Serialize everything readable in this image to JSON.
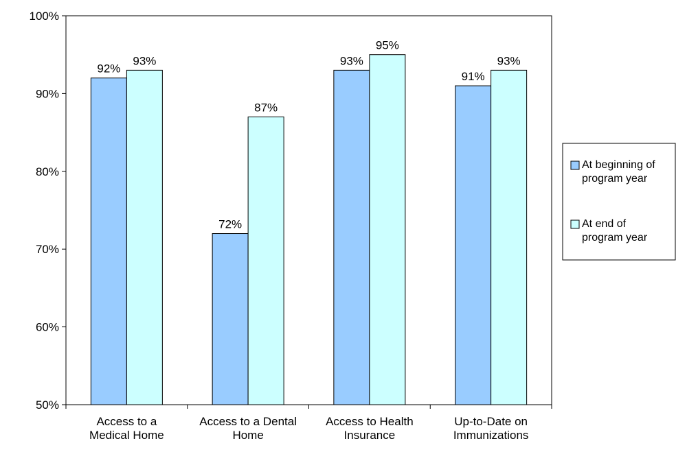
{
  "chart_data": {
    "type": "bar",
    "categories": [
      [
        "Access to a",
        "Medical Home"
      ],
      [
        "Access to a Dental",
        "Home"
      ],
      [
        "Access to Health",
        "Insurance"
      ],
      [
        "Up-to-Date on",
        "Immunizations"
      ]
    ],
    "series": [
      {
        "name": [
          "At beginning of",
          "program year"
        ],
        "values": [
          92,
          72,
          93,
          91
        ],
        "labels": [
          "92%",
          "72%",
          "93%",
          "91%"
        ],
        "color": "#99ccff"
      },
      {
        "name": [
          "At end of",
          "program year"
        ],
        "values": [
          93,
          87,
          95,
          93
        ],
        "labels": [
          "93%",
          "87%",
          "95%",
          "93%"
        ],
        "color": "#ccffff"
      }
    ],
    "ylim": [
      50,
      100
    ],
    "yticks": [
      "50%",
      "60%",
      "70%",
      "80%",
      "90%",
      "100%"
    ],
    "grid": false,
    "legend": "right"
  }
}
